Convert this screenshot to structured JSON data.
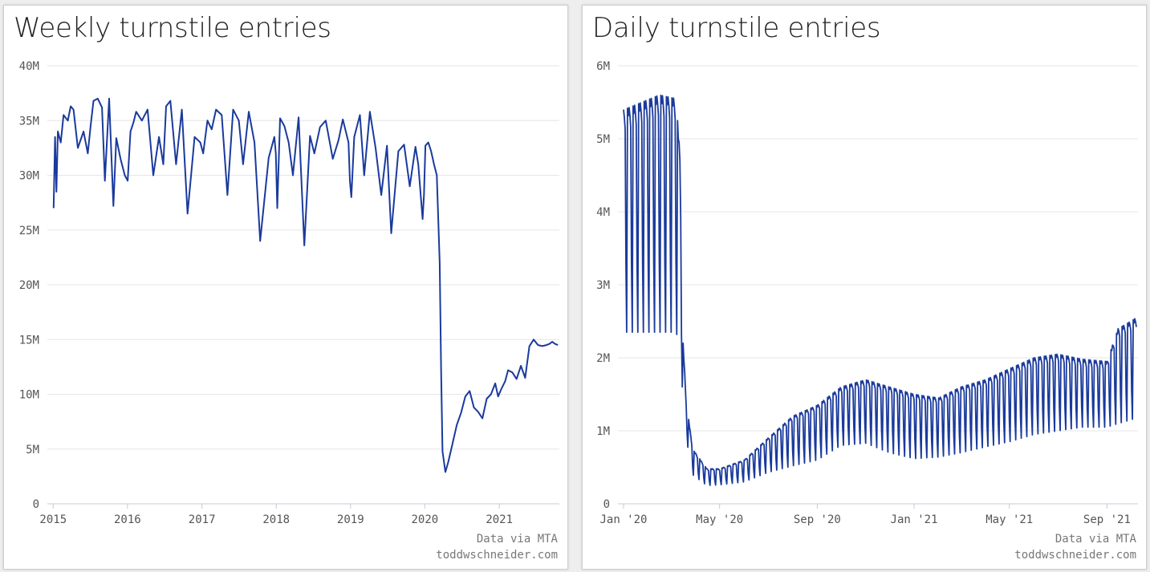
{
  "colors": {
    "line": "#1a3a9c",
    "grid": "#e6e6e6",
    "background": "#ffffff"
  },
  "chart_data": [
    {
      "type": "line",
      "title": "Weekly turnstile entries",
      "xlabel": "",
      "ylabel": "",
      "ylim": [
        0,
        40000000
      ],
      "xlim": [
        "2014-12-27",
        "2021-10-23"
      ],
      "yticks": [
        0,
        5000000,
        10000000,
        15000000,
        20000000,
        25000000,
        30000000,
        35000000,
        40000000
      ],
      "ytick_labels": [
        "0",
        "5M",
        "10M",
        "15M",
        "20M",
        "25M",
        "30M",
        "35M",
        "40M"
      ],
      "xticks": [
        "2015-01-01",
        "2016-01-01",
        "2017-01-01",
        "2018-01-01",
        "2019-01-01",
        "2020-01-01",
        "2021-01-01"
      ],
      "xtick_labels": [
        "2015",
        "2016",
        "2017",
        "2018",
        "2019",
        "2020",
        "2021"
      ],
      "grid": true,
      "series": [
        {
          "x": [
            "2015-01-03",
            "2015-01-10",
            "2015-01-17",
            "2015-01-24",
            "2015-02-07",
            "2015-02-21",
            "2015-03-14",
            "2015-03-28",
            "2015-04-11",
            "2015-05-02",
            "2015-05-30",
            "2015-06-20",
            "2015-07-04",
            "2015-07-18",
            "2015-08-08",
            "2015-08-29",
            "2015-09-12",
            "2015-10-03",
            "2015-10-24",
            "2015-11-07",
            "2015-11-28",
            "2015-12-19",
            "2016-01-02",
            "2016-01-16",
            "2016-01-30",
            "2016-02-13",
            "2016-03-12",
            "2016-04-09",
            "2016-05-07",
            "2016-06-04",
            "2016-06-25",
            "2016-07-09",
            "2016-07-30",
            "2016-08-27",
            "2016-09-24",
            "2016-10-22",
            "2016-11-26",
            "2016-12-24",
            "2017-01-07",
            "2017-01-28",
            "2017-02-18",
            "2017-03-11",
            "2017-04-08",
            "2017-05-06",
            "2017-06-03",
            "2017-07-01",
            "2017-07-22",
            "2017-08-19",
            "2017-09-16",
            "2017-10-14",
            "2017-11-25",
            "2017-12-23",
            "2017-12-30",
            "2018-01-06",
            "2018-01-20",
            "2018-02-10",
            "2018-03-03",
            "2018-03-24",
            "2018-04-21",
            "2018-05-19",
            "2018-06-16",
            "2018-07-07",
            "2018-08-04",
            "2018-09-01",
            "2018-10-06",
            "2018-11-03",
            "2018-11-24",
            "2018-12-22",
            "2018-12-29",
            "2019-01-05",
            "2019-01-19",
            "2019-02-16",
            "2019-03-09",
            "2019-04-06",
            "2019-05-04",
            "2019-06-01",
            "2019-06-29",
            "2019-07-20",
            "2019-08-24",
            "2019-09-21",
            "2019-10-19",
            "2019-11-16",
            "2019-11-30",
            "2019-12-21",
            "2019-12-28",
            "2020-01-04",
            "2020-01-18",
            "2020-02-01",
            "2020-02-15",
            "2020-02-29",
            "2020-03-14",
            "2020-03-21",
            "2020-03-28",
            "2020-04-11",
            "2020-04-25",
            "2020-05-16",
            "2020-06-06",
            "2020-06-27",
            "2020-07-18",
            "2020-08-08",
            "2020-08-29",
            "2020-09-19",
            "2020-10-10",
            "2020-10-31",
            "2020-11-21",
            "2020-12-12",
            "2020-12-26",
            "2021-01-09",
            "2021-01-30",
            "2021-02-13",
            "2021-03-06",
            "2021-03-27",
            "2021-04-17",
            "2021-05-08",
            "2021-05-29",
            "2021-06-19",
            "2021-07-10",
            "2021-07-31",
            "2021-08-21",
            "2021-09-04",
            "2021-09-18",
            "2021-10-02",
            "2021-10-16"
          ],
          "values": [
            27000000,
            33500000,
            28500000,
            34000000,
            33000000,
            35500000,
            35000000,
            36300000,
            36000000,
            32500000,
            34000000,
            32000000,
            34500000,
            36800000,
            37000000,
            36200000,
            29500000,
            37000000,
            27200000,
            33400000,
            31500000,
            30000000,
            29500000,
            34000000,
            34800000,
            35800000,
            35000000,
            36000000,
            30000000,
            33500000,
            31000000,
            36300000,
            36800000,
            31000000,
            36000000,
            26500000,
            33500000,
            33000000,
            32000000,
            35000000,
            34200000,
            36000000,
            35500000,
            28200000,
            36000000,
            35000000,
            31000000,
            35800000,
            33000000,
            24000000,
            31600000,
            33500000,
            32000000,
            27000000,
            35200000,
            34500000,
            33000000,
            30000000,
            35300000,
            23600000,
            33600000,
            32000000,
            34400000,
            35000000,
            31500000,
            33200000,
            35100000,
            33000000,
            29500000,
            28000000,
            33500000,
            35500000,
            30000000,
            35800000,
            32500000,
            28200000,
            32700000,
            24700000,
            32200000,
            32800000,
            29000000,
            32600000,
            31000000,
            26000000,
            28200000,
            32700000,
            33000000,
            32200000,
            31000000,
            30000000,
            22000000,
            12000000,
            4800000,
            2900000,
            3800000,
            5500000,
            7200000,
            8300000,
            9800000,
            10300000,
            8800000,
            8400000,
            7800000,
            9600000,
            10000000,
            11000000,
            9800000,
            10400000,
            11200000,
            12200000,
            12000000,
            11400000,
            12600000,
            11500000,
            14400000,
            15000000,
            14500000,
            14400000,
            14500000,
            14600000,
            14800000,
            14600000,
            14500000
          ],
          "color": "#1a3a9c"
        }
      ],
      "credits": [
        "Data via MTA",
        "toddwschneider.com"
      ]
    },
    {
      "type": "line",
      "title": "Daily turnstile entries",
      "xlabel": "",
      "ylabel": "",
      "ylim": [
        0,
        6000000
      ],
      "xlim": [
        "2019-12-31",
        "2021-10-10"
      ],
      "yticks": [
        0,
        1000000,
        2000000,
        3000000,
        4000000,
        5000000,
        6000000
      ],
      "ytick_labels": [
        "0",
        "1M",
        "2M",
        "3M",
        "4M",
        "5M",
        "6M"
      ],
      "xticks": [
        "2020-01-01",
        "2020-05-01",
        "2020-09-01",
        "2021-01-01",
        "2021-05-01",
        "2021-09-01"
      ],
      "xtick_labels": [
        "Jan '20",
        "May '20",
        "Sep '20",
        "Jan '21",
        "May '21",
        "Sep '21"
      ],
      "grid": true,
      "weekly_pattern": {
        "weekday_envelope": {
          "x": [
            "2020-01-02",
            "2020-02-15",
            "2020-03-07",
            "2020-03-12",
            "2020-03-16",
            "2020-03-20",
            "2020-03-28",
            "2020-04-15",
            "2020-05-01",
            "2020-06-01",
            "2020-07-01",
            "2020-08-01",
            "2020-09-01",
            "2020-10-01",
            "2020-11-01",
            "2020-12-01",
            "2021-01-01",
            "2021-02-01",
            "2021-03-01",
            "2021-04-01",
            "2021-05-01",
            "2021-06-01",
            "2021-07-01",
            "2021-08-01",
            "2021-09-01",
            "2021-09-15",
            "2021-10-01",
            "2021-10-08"
          ],
          "values": [
            5400000,
            5600000,
            5550000,
            4800000,
            2200000,
            1400000,
            750000,
            480000,
            480000,
            600000,
            900000,
            1200000,
            1350000,
            1600000,
            1700000,
            1600000,
            1500000,
            1450000,
            1600000,
            1700000,
            1850000,
            2000000,
            2050000,
            1980000,
            1950000,
            2400000,
            2500000,
            2550000
          ]
        },
        "weekend_envelope": {
          "x": [
            "2020-01-02",
            "2020-02-15",
            "2020-03-07",
            "2020-03-12",
            "2020-03-16",
            "2020-03-20",
            "2020-03-28",
            "2020-04-15",
            "2020-05-01",
            "2020-06-01",
            "2020-07-01",
            "2020-08-01",
            "2020-09-01",
            "2020-10-01",
            "2020-11-01",
            "2020-12-01",
            "2021-01-01",
            "2021-02-01",
            "2021-03-01",
            "2021-04-01",
            "2021-05-01",
            "2021-06-01",
            "2021-07-01",
            "2021-08-01",
            "2021-09-01",
            "2021-09-15",
            "2021-10-01",
            "2021-10-08"
          ],
          "values": [
            2350000,
            2350000,
            2350000,
            2200000,
            1400000,
            900000,
            400000,
            250000,
            260000,
            300000,
            430000,
            520000,
            600000,
            800000,
            830000,
            700000,
            620000,
            640000,
            700000,
            780000,
            850000,
            950000,
            1000000,
            1050000,
            1050000,
            1100000,
            1150000,
            1180000
          ]
        }
      },
      "color": "#1a3a9c",
      "credits": [
        "Data via MTA",
        "toddwschneider.com"
      ]
    }
  ]
}
